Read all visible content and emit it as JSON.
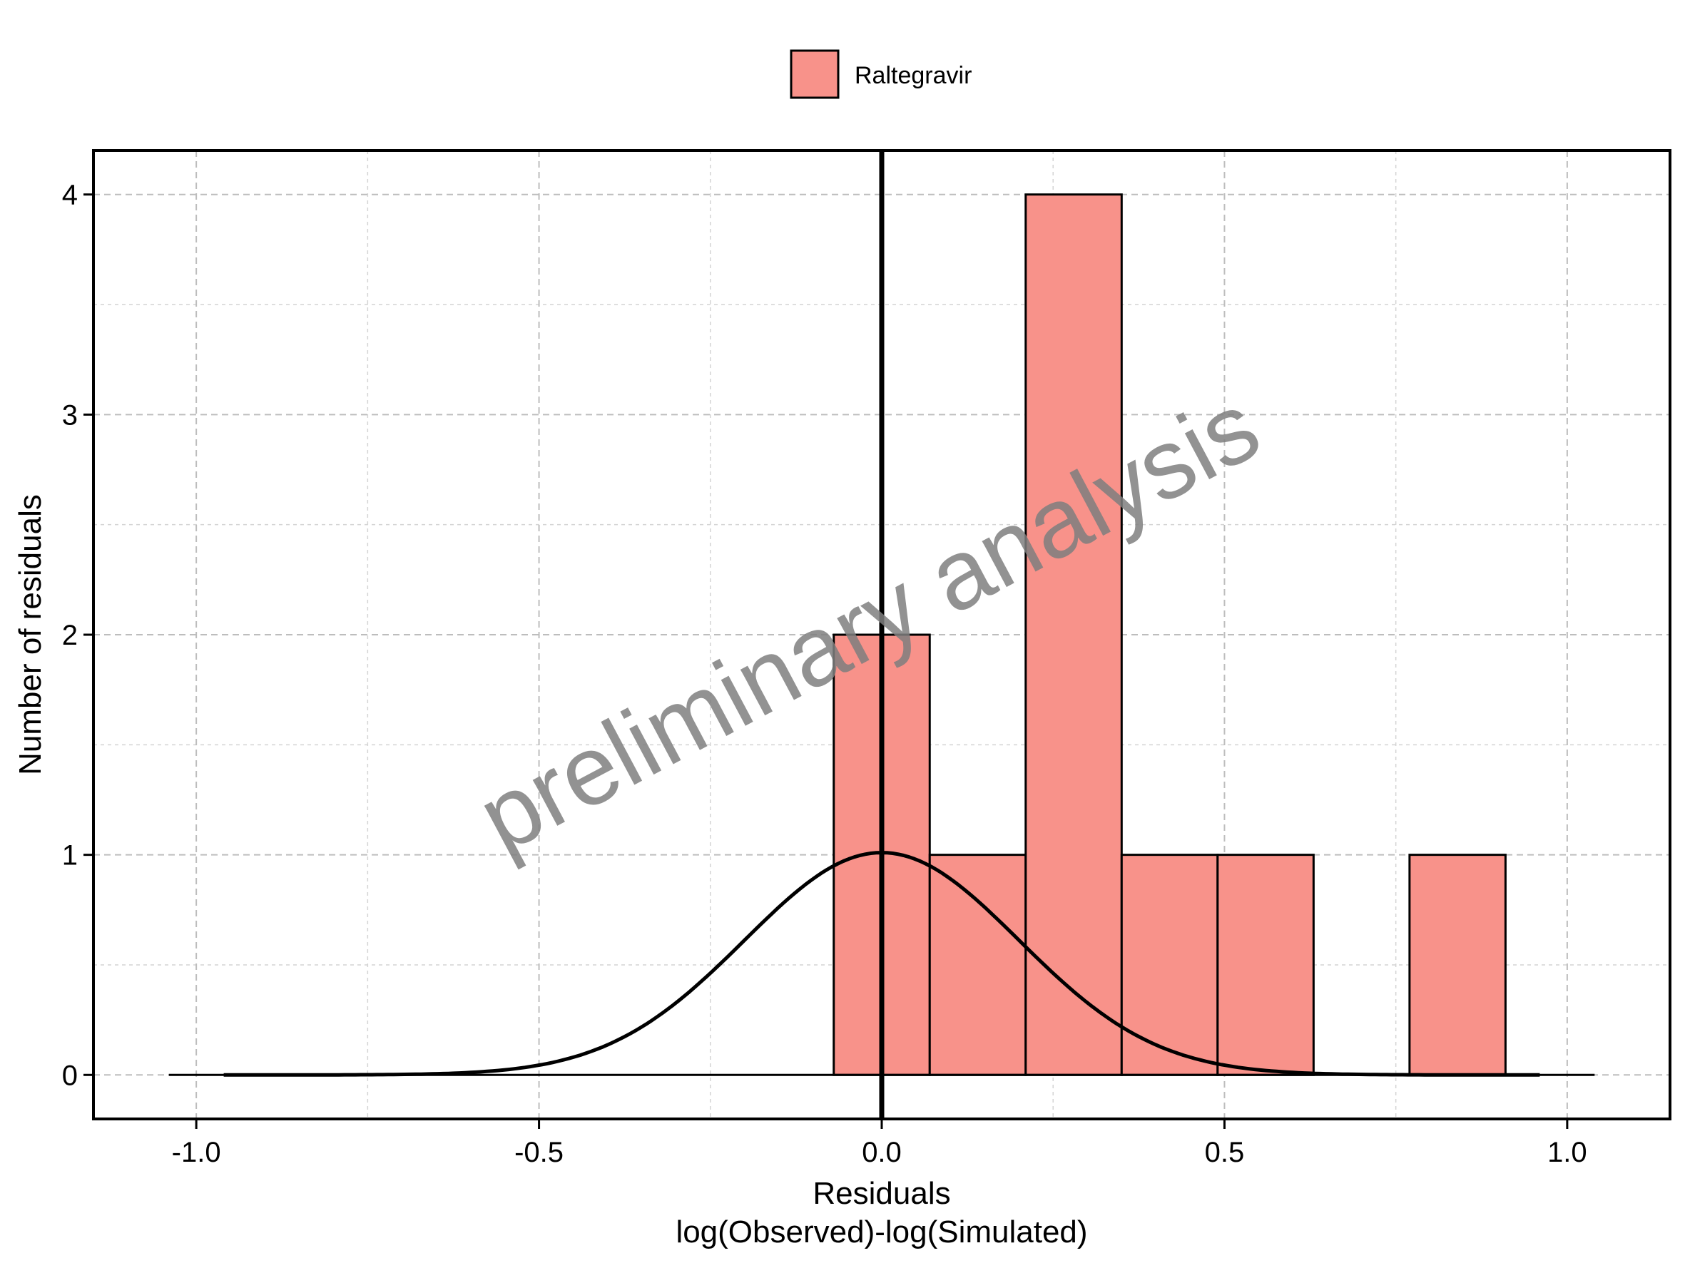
{
  "chart_data": {
    "type": "bar",
    "subtype": "histogram",
    "xlabel": [
      "Residuals",
      "log(Observed)-log(Simulated)"
    ],
    "ylabel": "Number of residuals",
    "xlim": [
      -1.15,
      1.15
    ],
    "ylim": [
      -0.2,
      4.2
    ],
    "xticks": [
      -1.0,
      -0.5,
      0.0,
      0.5,
      1.0
    ],
    "xtick_labels": [
      "-1.0",
      "-0.5",
      "0.0",
      "0.5",
      "1.0"
    ],
    "yticks": [
      0,
      1,
      2,
      3,
      4
    ],
    "ytick_labels": [
      "0",
      "1",
      "2",
      "3",
      "4"
    ],
    "grid": true,
    "legend": {
      "position": "top",
      "entries": [
        {
          "name": "Raltegravir",
          "color": "#f8928a"
        }
      ]
    },
    "series": [
      {
        "name": "Raltegravir",
        "color": "#f8928a",
        "bins": [
          {
            "x0": -0.07,
            "x1": 0.07,
            "count": 2
          },
          {
            "x0": 0.07,
            "x1": 0.21,
            "count": 1
          },
          {
            "x0": 0.21,
            "x1": 0.35,
            "count": 4
          },
          {
            "x0": 0.35,
            "x1": 0.49,
            "count": 1
          },
          {
            "x0": 0.49,
            "x1": 0.63,
            "count": 1
          },
          {
            "x0": 0.63,
            "x1": 0.77,
            "count": 0
          },
          {
            "x0": 0.77,
            "x1": 0.91,
            "count": 1
          }
        ]
      }
    ],
    "reference_line": {
      "x": 0.0
    },
    "baseline": {
      "x0": -1.04,
      "x1": 1.04,
      "y": 0
    },
    "density_curve": {
      "name": "normal density",
      "mean": 0.0,
      "sd": 0.2,
      "peak": 1.01,
      "x_range": [
        -0.96,
        0.96
      ]
    },
    "watermark": "preliminary analysis"
  }
}
